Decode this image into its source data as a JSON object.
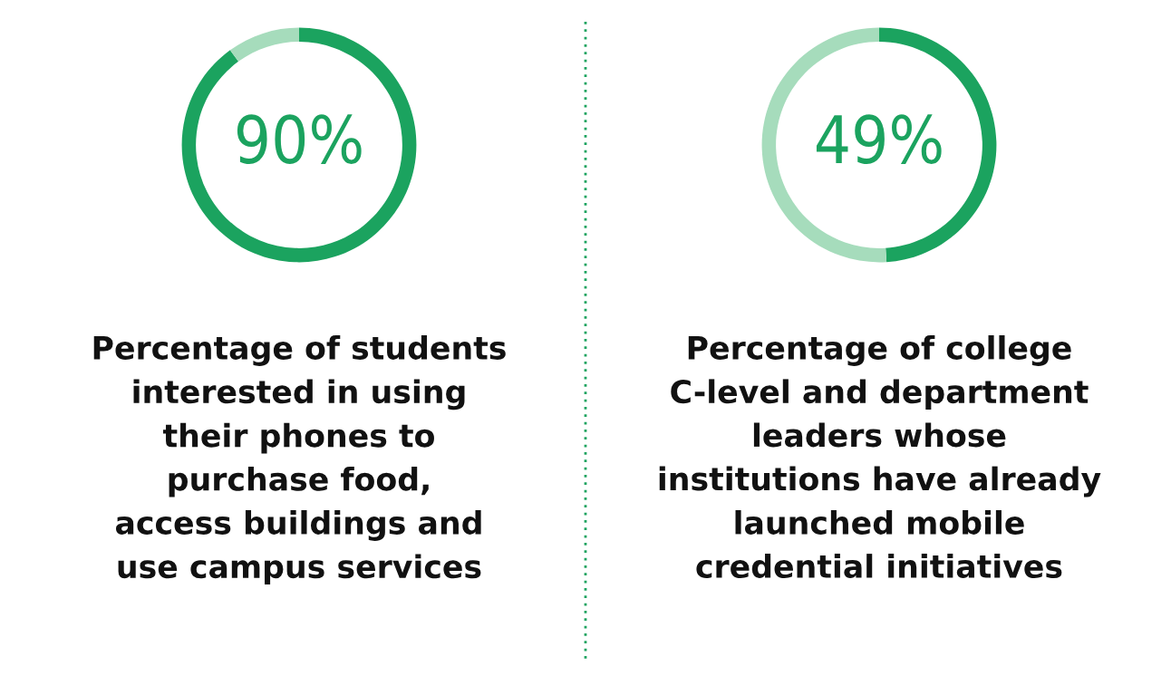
{
  "chart_data": [
    {
      "type": "donut",
      "categories": [
        null,
        null
      ],
      "values": [
        90,
        10
      ],
      "colors": [
        "#1ba35f",
        "#a6dcbc"
      ],
      "annotations": [
        "90%"
      ],
      "title": "Percentage of students\ninterested in using\ntheir phones to\npurchase food,\naccess buildings and\nuse campus services"
    },
    {
      "type": "donut",
      "categories": [
        null,
        null
      ],
      "values": [
        49,
        51
      ],
      "colors": [
        "#1ba35f",
        "#a6dcbc"
      ],
      "annotations": [
        "49%"
      ],
      "title": "Percentage of college\nC-level and department\nleaders whose\ninstitutions have already\nlaunched mobile\ncredential initiatives"
    }
  ]
}
